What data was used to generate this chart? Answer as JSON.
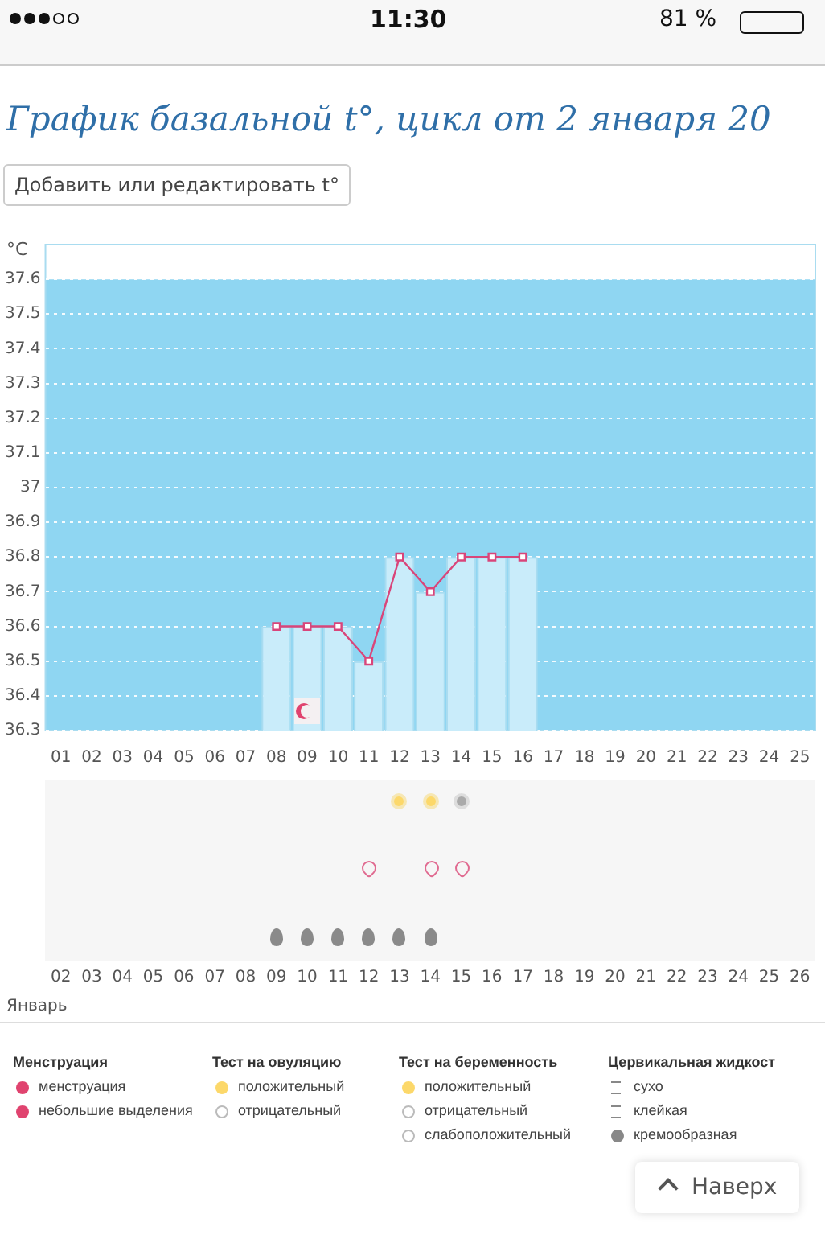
{
  "chart_data": {
    "type": "bar",
    "title": "График базальной t°, цикл от 2 января 20",
    "ylabel": "°C",
    "categories": [
      "01",
      "02",
      "03",
      "04",
      "05",
      "06",
      "07",
      "08",
      "09",
      "10",
      "11",
      "12",
      "13",
      "14",
      "15",
      "16",
      "17",
      "18",
      "19",
      "20",
      "21",
      "22",
      "23",
      "24",
      "25"
    ],
    "series": [
      {
        "type": "bar",
        "color": "#c9ecfa",
        "values": [
          null,
          null,
          null,
          null,
          null,
          null,
          null,
          36.6,
          36.6,
          36.6,
          36.5,
          36.8,
          36.7,
          36.8,
          36.8,
          36.8,
          null,
          null,
          null,
          null,
          null,
          null,
          null,
          null,
          null
        ]
      },
      {
        "type": "line",
        "color": "#d9457a",
        "values": [
          null,
          null,
          null,
          null,
          null,
          null,
          null,
          36.6,
          36.6,
          36.6,
          36.5,
          36.8,
          36.7,
          36.8,
          36.8,
          36.8,
          null,
          null,
          null,
          null,
          null,
          null,
          null,
          null,
          null
        ]
      }
    ],
    "ylim": [
      36.3,
      37.7
    ],
    "yticks": [
      36.3,
      36.4,
      36.5,
      36.6,
      36.7,
      36.8,
      36.9,
      37,
      37.1,
      37.2,
      37.3,
      37.4,
      37.5,
      37.6
    ],
    "grid": "y",
    "marker": "square",
    "legend": false,
    "bands": [
      {
        "axis": "y",
        "from": 36.3,
        "to": 37.6,
        "color": "#8fd6f2"
      }
    ],
    "annotations": [
      "11:30",
      "81 %",
      "Добавить или редактировать t°",
      "Январь",
      "Менструация",
      "менструация",
      "небольшие выделения",
      "Тест на овуляцию",
      "положительный",
      "отрицательный",
      "Тест на беременность",
      "положительный",
      "отрицательный",
      "слабоположительный",
      "Цервикальная жидкост",
      "сухо",
      "клейкая",
      "кремообразная",
      "Наверх",
      "02",
      "03",
      "04",
      "05",
      "06",
      "07",
      "08",
      "09",
      "10",
      "11",
      "12",
      "13",
      "14",
      "15",
      "16",
      "17",
      "18",
      "19",
      "20",
      "21",
      "22",
      "23",
      "24",
      "25",
      "26"
    ]
  }
}
